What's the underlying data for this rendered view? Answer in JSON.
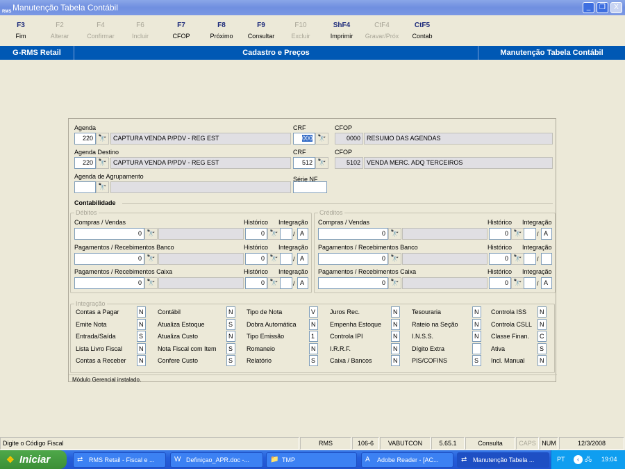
{
  "window": {
    "title": "Manutenção Tabela Contábil",
    "logo": "RMS"
  },
  "toolbar": [
    {
      "key": "F3",
      "label": "Fim",
      "enabled": true
    },
    {
      "key": "F2",
      "label": "Alterar",
      "enabled": false
    },
    {
      "key": "F4",
      "label": "Confirmar",
      "enabled": false
    },
    {
      "key": "F6",
      "label": "Incluir",
      "enabled": false
    },
    {
      "key": "F7",
      "label": "CFOP",
      "enabled": true
    },
    {
      "key": "F8",
      "label": "Próximo",
      "enabled": true
    },
    {
      "key": "F9",
      "label": "Consultar",
      "enabled": true
    },
    {
      "key": "F10",
      "label": "Excluir",
      "enabled": false
    },
    {
      "key": "ShF4",
      "label": "Imprimir",
      "enabled": true
    },
    {
      "key": "CtF4",
      "label": "Gravar/Próx",
      "enabled": false
    },
    {
      "key": "CtF5",
      "label": "Contab",
      "enabled": true
    }
  ],
  "header": {
    "app": "G-RMS Retail",
    "module": "Cadastro e Preços",
    "screen": "Manutenção Tabela Contábil"
  },
  "form": {
    "agenda": {
      "label": "Agenda",
      "code": "220",
      "desc": "CAPTURA VENDA P/PDV - REG EST"
    },
    "crf1": {
      "label": "CRF",
      "value": "000"
    },
    "cfop1": {
      "label": "CFOP",
      "code": "0000",
      "desc": "RESUMO DAS AGENDAS"
    },
    "agenda_destino": {
      "label": "Agenda Destino",
      "code": "220",
      "desc": "CAPTURA VENDA P/PDV - REG EST"
    },
    "crf2": {
      "label": "CRF",
      "value": "512"
    },
    "cfop2": {
      "label": "CFOP",
      "code": "5102",
      "desc": "VENDA MERC. ADQ TERCEIROS"
    },
    "agrupamento": {
      "label": "Agenda de Agrupamento",
      "code": "",
      "desc": ""
    },
    "serie_nf": {
      "label": "Série NF",
      "value": ""
    }
  },
  "contabilidade": {
    "title": "Contabilidade",
    "historico_label": "Histórico",
    "integracao_label": "Integração",
    "debitos": {
      "title": "Débitos",
      "rows": [
        {
          "label": "Compras / Vendas",
          "conta": "0",
          "historico": "0",
          "integ1": "",
          "integ2": "A"
        },
        {
          "label": "Pagamentos / Recebimentos Banco",
          "conta": "0",
          "historico": "0",
          "integ1": "",
          "integ2": "A"
        },
        {
          "label": "Pagamentos / Recebimentos Caixa",
          "conta": "0",
          "historico": "0",
          "integ1": "",
          "integ2": "A"
        }
      ]
    },
    "creditos": {
      "title": "Créditos",
      "rows": [
        {
          "label": "Compras / Vendas",
          "conta": "0",
          "historico": "0",
          "integ1": "",
          "integ2": "A"
        },
        {
          "label": "Pagamentos / Recebimentos Banco",
          "conta": "0",
          "historico": "0",
          "integ1": "",
          "integ2": ""
        },
        {
          "label": "Pagamentos / Recebimentos Caixa",
          "conta": "0",
          "historico": "0",
          "integ1": "",
          "integ2": "A"
        }
      ]
    }
  },
  "integracao": {
    "title": "Integração",
    "columns": [
      [
        [
          "Contas a Pagar",
          "N"
        ],
        [
          "Emite Nota",
          "N"
        ],
        [
          "Entrada/Saída",
          "S"
        ],
        [
          "Lista Livro Fiscal",
          "N"
        ],
        [
          "Contas a Receber",
          "N"
        ]
      ],
      [
        [
          "Contábil",
          "N"
        ],
        [
          "Atualiza Estoque",
          "S"
        ],
        [
          "Atualiza Custo",
          "N"
        ],
        [
          "Nota Fiscal com Item",
          "S"
        ],
        [
          "Confere Custo",
          "S"
        ]
      ],
      [
        [
          "Tipo de Nota",
          "V"
        ],
        [
          "Dobra Automática",
          "N"
        ],
        [
          "Tipo Emissão",
          "1"
        ],
        [
          "Romaneio",
          "N"
        ],
        [
          "Relatório",
          "S"
        ]
      ],
      [
        [
          "Juros Rec.",
          "N"
        ],
        [
          "Empenha Estoque",
          "N"
        ],
        [
          "Controla IPI",
          "N"
        ],
        [
          "I.R.R.F.",
          "N"
        ],
        [
          "Caixa / Bancos",
          "N"
        ]
      ],
      [
        [
          "Tesouraria",
          "N"
        ],
        [
          "Rateio na Seção",
          "N"
        ],
        [
          "I.N.S.S.",
          "N"
        ],
        [
          "Dígito Extra",
          ""
        ],
        [
          "PIS/COFINS",
          "S"
        ]
      ],
      [
        [
          "Controla ISS",
          "N"
        ],
        [
          "Controla CSLL",
          "N"
        ],
        [
          "Classe Finan.",
          "C"
        ],
        [
          "Ativa",
          "S"
        ],
        [
          "Incl. Manual",
          "N"
        ]
      ]
    ]
  },
  "footer_msg": "Módulo Gerencial instalado.",
  "status": {
    "hint": "Digite o Código Fiscal",
    "system": "RMS",
    "code": "106-6",
    "user": "VABUTCON",
    "version": "5.65.1",
    "mode": "Consulta",
    "caps": "CAPS",
    "num": "NUM",
    "date": "12/3/2008"
  },
  "taskbar": {
    "start": "Iniciar",
    "items": [
      "RMS Retail - Fiscal e ...",
      "Definiçao_APR.doc -...",
      "TMP",
      "Adobe Reader - [AC...",
      "Manutenção Tabela ..."
    ],
    "lang": "PT",
    "clock": "19:04"
  },
  "colors": {
    "header_blue": "#0058b4",
    "background": "#ece9d8",
    "taskbar": "#245edb"
  }
}
